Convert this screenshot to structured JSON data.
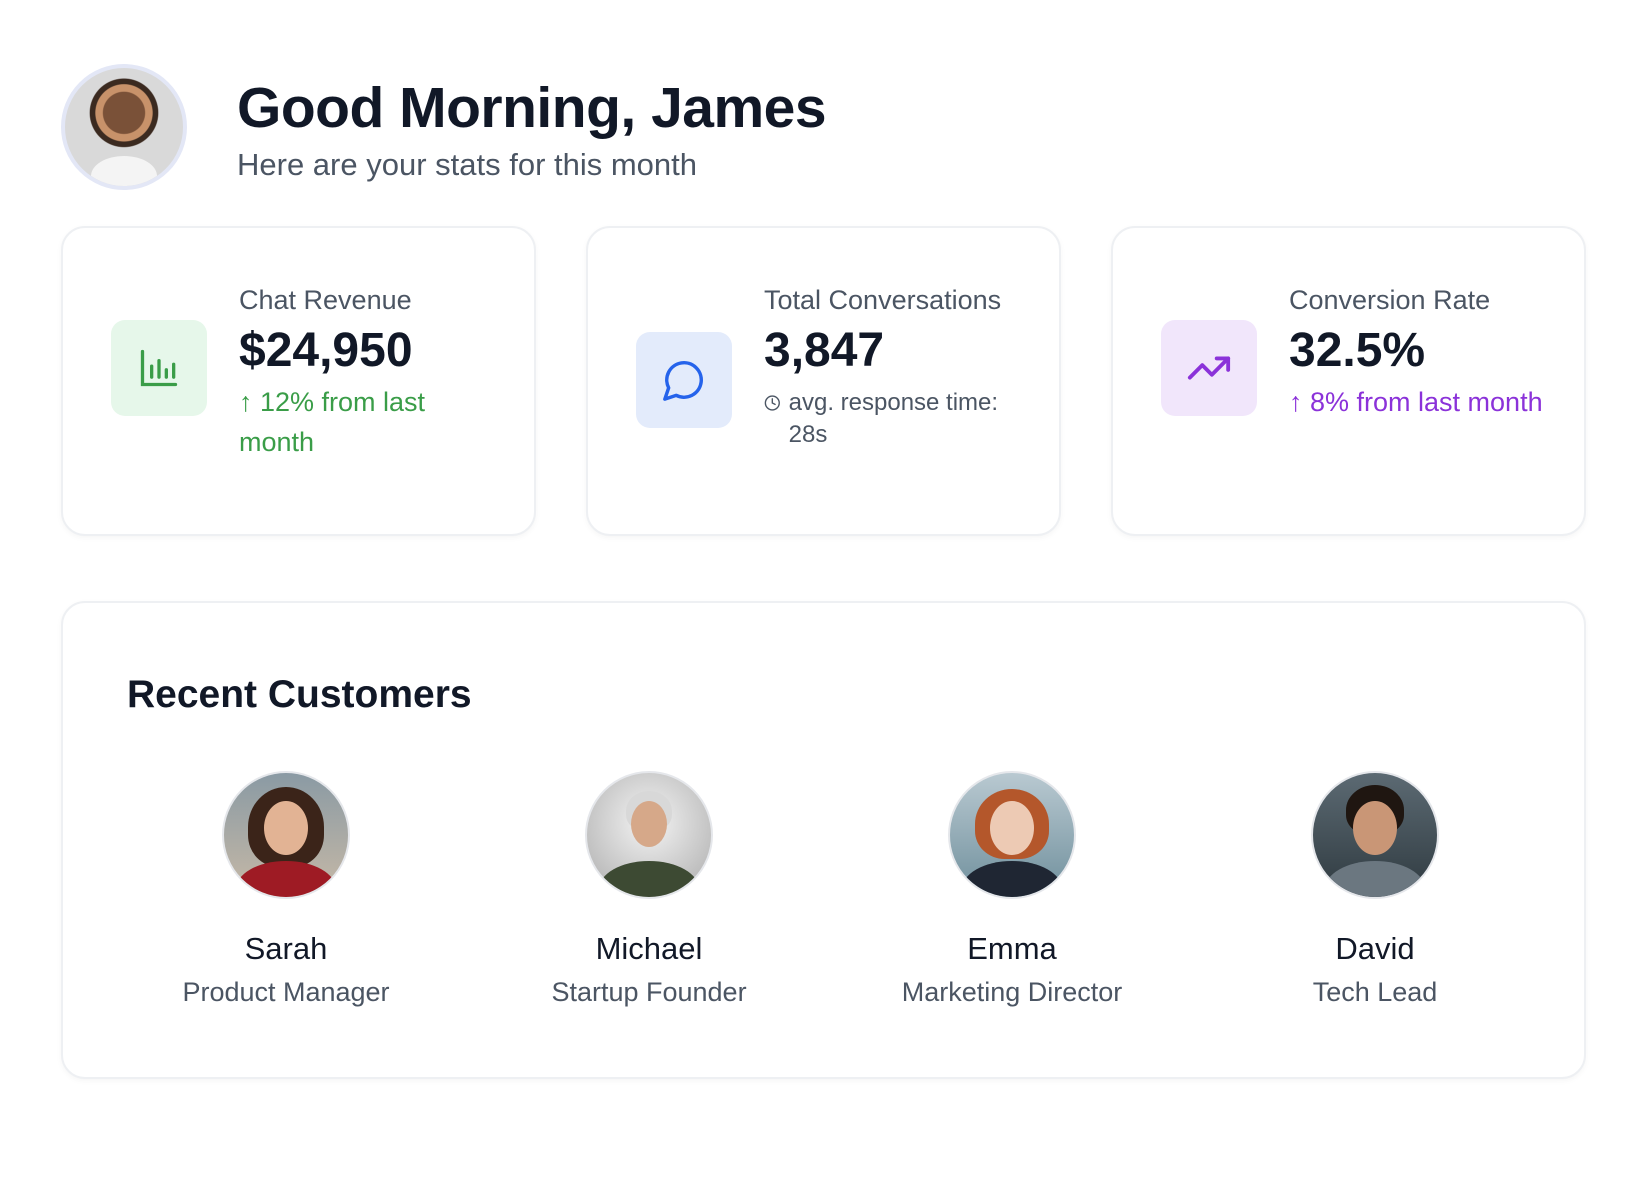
{
  "header": {
    "greeting": "Good Morning, James",
    "subtitle": "Here are your stats for this month"
  },
  "stats": [
    {
      "label": "Chat Revenue",
      "value": "$24,950",
      "trend": "↑ 12% from last month",
      "icon": "bar-chart-icon",
      "icon_color": "#3a9d48",
      "icon_bg": "#e6f7ea"
    },
    {
      "label": "Total Conversations",
      "value": "3,847",
      "meta": "avg. response time: 28s",
      "icon": "chat-bubble-icon",
      "icon_color": "#2563eb",
      "icon_bg": "#e3ebfb"
    },
    {
      "label": "Conversion Rate",
      "value": "32.5%",
      "trend": "↑ 8% from last month",
      "icon": "trending-up-icon",
      "icon_color": "#8b32d9",
      "icon_bg": "#f1e6fb"
    }
  ],
  "customers": {
    "title": "Recent Customers",
    "items": [
      {
        "name": "Sarah",
        "role": "Product Manager"
      },
      {
        "name": "Michael",
        "role": "Startup Founder"
      },
      {
        "name": "Emma",
        "role": "Marketing Director"
      },
      {
        "name": "David",
        "role": "Tech Lead"
      }
    ]
  }
}
